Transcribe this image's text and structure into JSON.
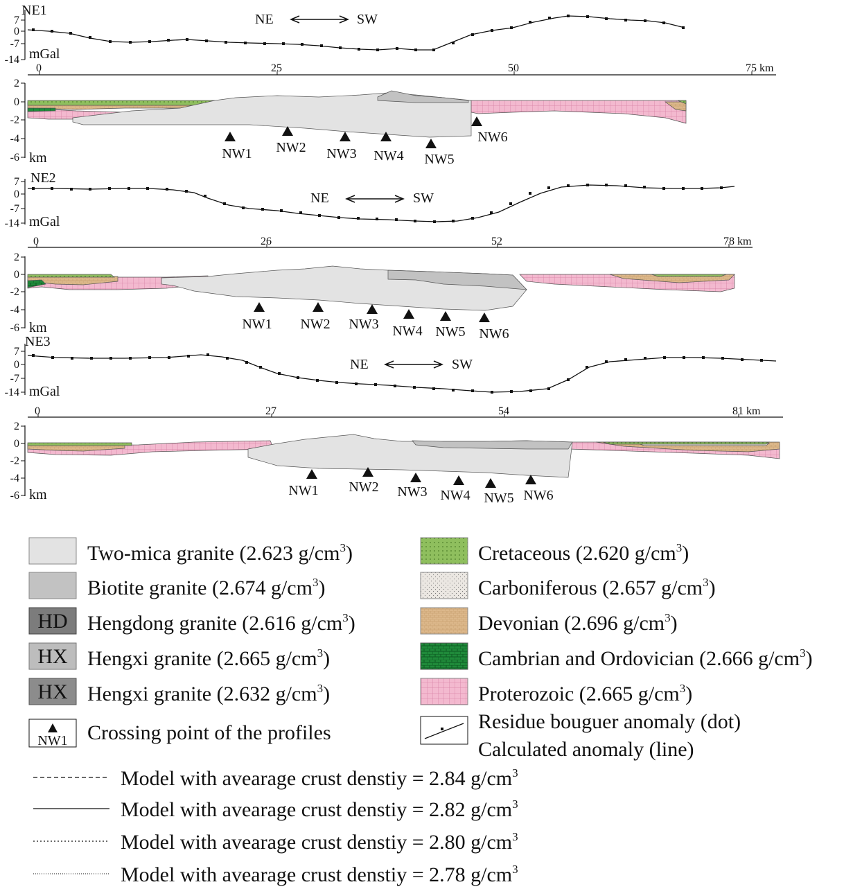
{
  "profiles": [
    {
      "name": "NE1",
      "gravity_unit": "mGal",
      "gravity_ticks": [
        "7",
        "0",
        "-7",
        "-14"
      ],
      "direction": {
        "left": "NE",
        "right": "SW"
      },
      "distance_ticks": [
        "0",
        "25",
        "50",
        "75 km"
      ],
      "depth_unit": "km",
      "depth_ticks": [
        "2",
        "0",
        "-2",
        "-4",
        "-6"
      ],
      "crossings": [
        "NW1",
        "NW2",
        "NW3",
        "NW4",
        "NW5",
        "NW6"
      ]
    },
    {
      "name": "NE2",
      "gravity_unit": "mGal",
      "gravity_ticks": [
        "7",
        "0",
        "-7",
        "-14"
      ],
      "direction": {
        "left": "NE",
        "right": "SW"
      },
      "distance_ticks": [
        "0",
        "26",
        "52",
        "78 km"
      ],
      "depth_unit": "km",
      "depth_ticks": [
        "2",
        "0",
        "-2",
        "-4",
        "-6"
      ],
      "crossings": [
        "NW1",
        "NW2",
        "NW3",
        "NW4",
        "NW5",
        "NW6"
      ]
    },
    {
      "name": "NE3",
      "gravity_unit": "mGal",
      "gravity_ticks": [
        "7",
        "0",
        "-7",
        "-14"
      ],
      "direction": {
        "left": "NE",
        "right": "SW"
      },
      "distance_ticks": [
        "0",
        "27",
        "54",
        "81 km"
      ],
      "depth_unit": "km",
      "depth_ticks": [
        "2",
        "0",
        "-2",
        "-4",
        "-6"
      ],
      "crossings": [
        "NW1",
        "NW2",
        "NW3",
        "NW4",
        "NW5",
        "NW6"
      ]
    }
  ],
  "legend": {
    "left": [
      {
        "label": "Two-mica granite (2.623 g/cm",
        "sup": "3",
        "tail": ")",
        "color": "#e3e3e3"
      },
      {
        "label": "Biotite granite (2.674 g/cm",
        "sup": "3",
        "tail": ")",
        "color": "#c2c2c2"
      },
      {
        "label": "Hengdong granite (2.616 g/cm",
        "sup": "3",
        "tail": ")",
        "color": "#7c7c7c",
        "swatch_text": "HD"
      },
      {
        "label": "Hengxi granite (2.665 g/cm",
        "sup": "3",
        "tail": ")",
        "color": "#bdbdbd",
        "swatch_text": "HX"
      },
      {
        "label": "Hengxi granite (2.632 g/cm",
        "sup": "3",
        "tail": ")",
        "color": "#8c8c8c",
        "swatch_text": "HX"
      },
      {
        "label": "Crossing point of the profiles",
        "sup": "",
        "tail": "",
        "color": "#ffffff",
        "swatch_text": "NW1"
      }
    ],
    "right": [
      {
        "label": "Cretaceous (2.620 g/cm",
        "sup": "3",
        "tail": ")",
        "color": "#8fbf5e"
      },
      {
        "label": "Carboniferous (2.657 g/cm",
        "sup": "3",
        "tail": ")",
        "color": "#e8e3de"
      },
      {
        "label": "Devonian (2.696 g/cm",
        "sup": "3",
        "tail": ")",
        "color": "#dcb88b"
      },
      {
        "label": "Cambrian and Ordovician (2.666 g/cm",
        "sup": "3",
        "tail": ")",
        "color": "#1f8a3a"
      },
      {
        "label": "Proterozoic (2.665 g/cm",
        "sup": "3",
        "tail": ")",
        "color": "#f3b9cf"
      },
      {
        "label": "Residue bouguer anomaly (dot)",
        "label2": "Calculated anomaly (line)",
        "color": "#ffffff"
      }
    ],
    "models": [
      {
        "label": "Model with avearage crust denstiy = 2.84 g/cm",
        "sup": "3",
        "dash": "6,4"
      },
      {
        "label": "Model with avearage crust denstiy = 2.82 g/cm",
        "sup": "3",
        "dash": "none"
      },
      {
        "label": "Model with avearage crust denstiy = 2.80 g/cm",
        "sup": "3",
        "dash": "2,3"
      },
      {
        "label": "Model with avearage crust denstiy = 2.78 g/cm",
        "sup": "3",
        "dash": "1,2"
      }
    ]
  }
}
